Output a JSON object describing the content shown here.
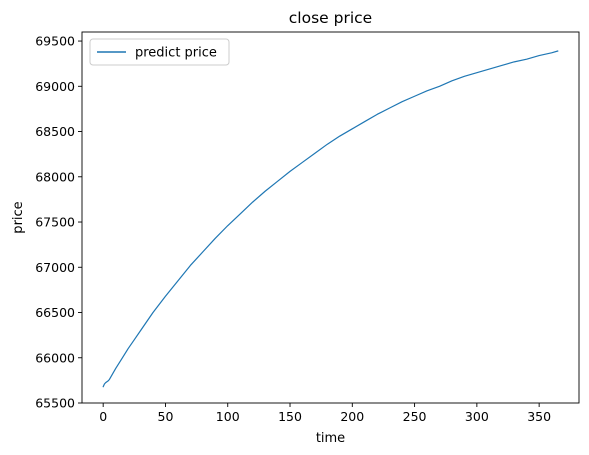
{
  "chart_data": {
    "type": "line",
    "title": "close price",
    "xlabel": "time",
    "ylabel": "price",
    "xlim": [
      -17,
      382
    ],
    "ylim": [
      65500,
      69600
    ],
    "xticks": [
      0,
      50,
      100,
      150,
      200,
      250,
      300,
      350
    ],
    "yticks": [
      65500,
      66000,
      66500,
      67000,
      67500,
      68000,
      68500,
      69000,
      69500
    ],
    "grid": false,
    "legend": {
      "position": "top-left"
    },
    "series": [
      {
        "name": "predict price",
        "color": "#1f77b4",
        "x": [
          0,
          1,
          2,
          3,
          4,
          5,
          10,
          15,
          20,
          25,
          30,
          40,
          50,
          60,
          70,
          80,
          90,
          100,
          110,
          120,
          130,
          140,
          150,
          160,
          170,
          180,
          190,
          200,
          210,
          220,
          230,
          240,
          250,
          260,
          270,
          280,
          290,
          300,
          310,
          320,
          330,
          340,
          350,
          360,
          365
        ],
        "y": [
          65680,
          65710,
          65725,
          65735,
          65745,
          65760,
          65880,
          65990,
          66100,
          66200,
          66300,
          66500,
          66680,
          66850,
          67020,
          67170,
          67320,
          67460,
          67590,
          67720,
          67840,
          67950,
          68060,
          68160,
          68260,
          68360,
          68450,
          68530,
          68610,
          68690,
          68760,
          68830,
          68890,
          68950,
          69000,
          69060,
          69110,
          69150,
          69190,
          69230,
          69270,
          69300,
          69340,
          69370,
          69390
        ]
      }
    ]
  }
}
